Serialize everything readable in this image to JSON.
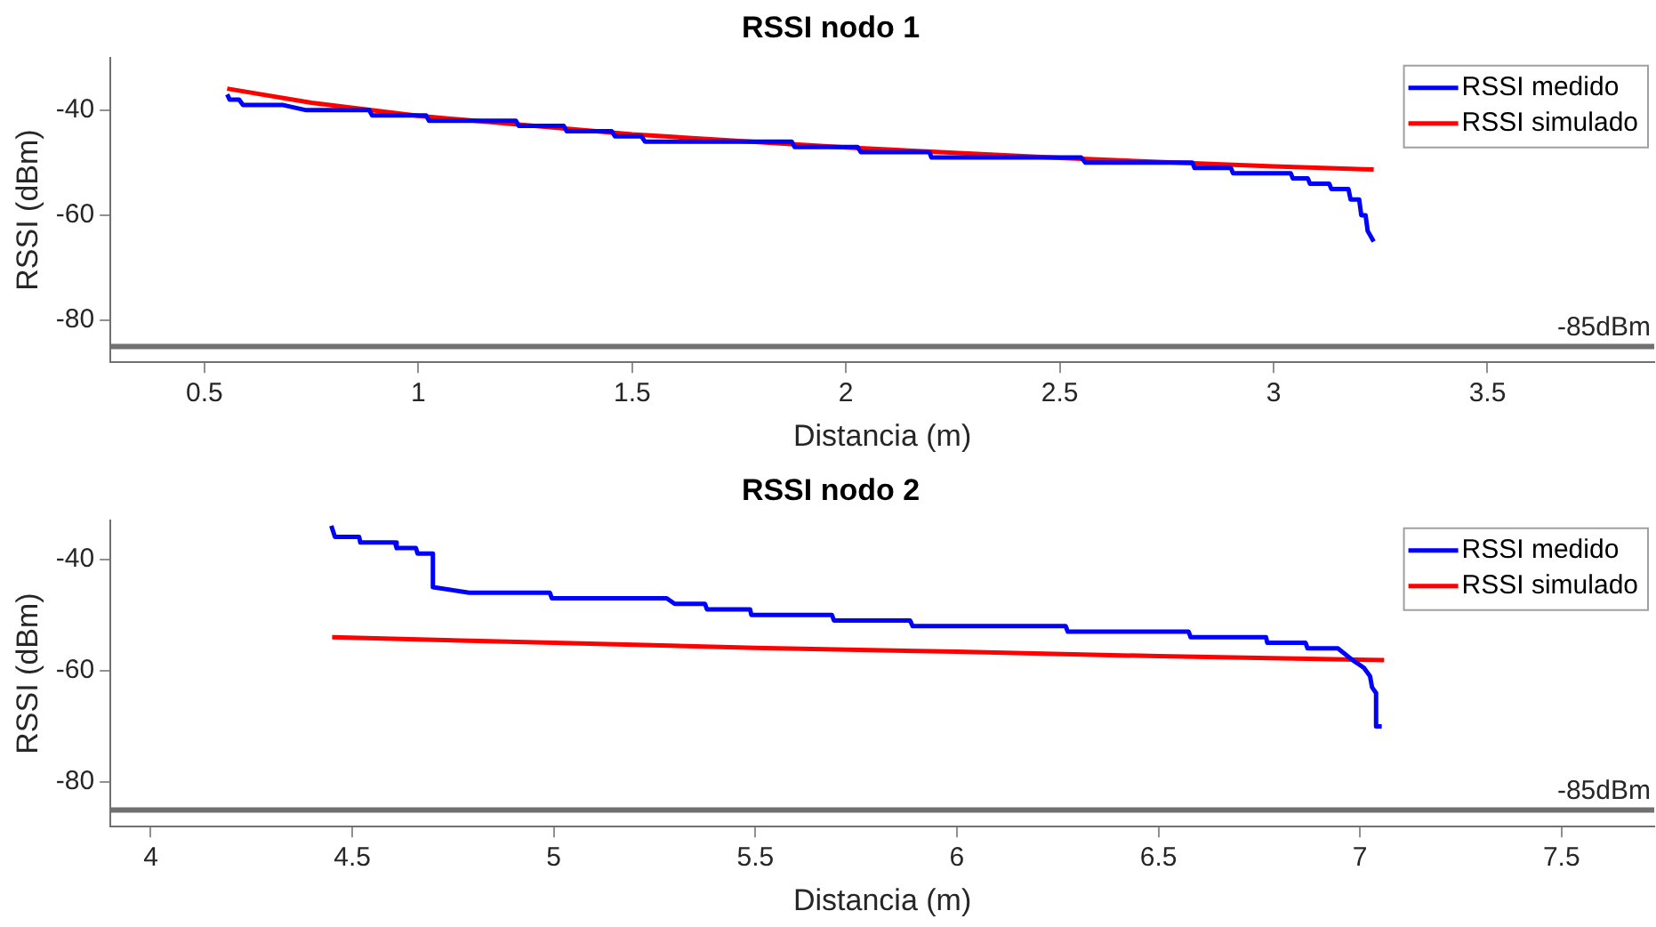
{
  "chart_data": [
    {
      "type": "line",
      "title": "RSSI nodo 1",
      "xlabel": "Distancia (m)",
      "ylabel": "RSSI (dBm)",
      "xlim": [
        0.28,
        3.89
      ],
      "xticks": [
        0.5,
        1,
        1.5,
        2,
        2.5,
        3,
        3.5
      ],
      "ylim": [
        -88,
        -30
      ],
      "yticks": [
        -40,
        -60,
        -80
      ],
      "grid": false,
      "legend": "top right",
      "line_style": "solid",
      "marker": "none",
      "ref_lines": [
        {
          "axis": "y",
          "value": -85,
          "label": "-85dBm",
          "color": "#707070"
        }
      ],
      "series": [
        {
          "name": "RSSI medido",
          "color": "#0000ff",
          "x": [
            0.553,
            0.559,
            0.581,
            0.59,
            0.682,
            0.738,
            0.885,
            0.892,
            1.018,
            1.025,
            1.228,
            1.235,
            1.34,
            1.347,
            1.452,
            1.46,
            1.522,
            1.53,
            1.873,
            1.88,
            2.027,
            2.035,
            2.195,
            2.2,
            2.55,
            2.56,
            2.81,
            2.815,
            2.9,
            2.905,
            3.04,
            3.045,
            3.08,
            3.085,
            3.13,
            3.135,
            3.175,
            3.18,
            3.2,
            3.205,
            3.215,
            3.22,
            3.234
          ],
          "values": [
            -37,
            -38,
            -38,
            -39,
            -39,
            -40,
            -40,
            -41,
            -41,
            -42,
            -42,
            -43,
            -43,
            -44,
            -44,
            -45,
            -45,
            -46,
            -46,
            -47,
            -47,
            -48,
            -48,
            -49,
            -49,
            -50,
            -50,
            -51,
            -51,
            -52,
            -52,
            -53,
            -53,
            -54,
            -54,
            -55,
            -55,
            -57,
            -57,
            -60,
            -60,
            -63,
            -65
          ]
        },
        {
          "name": "RSSI simulado",
          "color": "#ff0000",
          "x": [
            0.553,
            0.75,
            1,
            1.5,
            2,
            2.5,
            3,
            3.234
          ],
          "values": [
            -35.9,
            -38.6,
            -41.1,
            -44.6,
            -47.1,
            -49.1,
            -50.7,
            -51.3
          ]
        }
      ]
    },
    {
      "type": "line",
      "title": "RSSI nodo 2",
      "xlabel": "Distancia (m)",
      "ylabel": "RSSI (dBm)",
      "xlim": [
        3.9,
        7.73
      ],
      "xticks": [
        4,
        4.5,
        5,
        5.5,
        6,
        6.5,
        7,
        7.5
      ],
      "ylim": [
        -88,
        -33
      ],
      "yticks": [
        -40,
        -60,
        -80
      ],
      "grid": false,
      "legend": "top right",
      "line_style": "solid",
      "marker": "none",
      "ref_lines": [
        {
          "axis": "y",
          "value": -85,
          "label": "-85dBm",
          "color": "#707070"
        }
      ],
      "series": [
        {
          "name": "RSSI medido",
          "color": "#0000ff",
          "x": [
            4.448,
            4.457,
            4.517,
            4.52,
            4.606,
            4.61,
            4.658,
            4.662,
            4.7,
            4.7,
            4.79,
            4.99,
            4.995,
            5.28,
            5.3,
            5.375,
            5.38,
            5.487,
            5.49,
            5.69,
            5.695,
            5.884,
            5.89,
            6.27,
            6.275,
            6.575,
            6.58,
            6.767,
            6.77,
            6.865,
            6.87,
            6.945,
            6.98,
            7.01,
            7.025,
            7.03,
            7.04,
            7.04,
            7.054
          ],
          "values": [
            -34,
            -36,
            -36,
            -37,
            -37,
            -38,
            -38,
            -39,
            -39,
            -45,
            -46,
            -46,
            -47,
            -47,
            -48,
            -48,
            -49,
            -49,
            -50,
            -50,
            -51,
            -51,
            -52,
            -52,
            -53,
            -53,
            -54,
            -54,
            -55,
            -55,
            -56,
            -56,
            -58,
            -59.5,
            -61,
            -63,
            -64,
            -70,
            -70
          ]
        },
        {
          "name": "RSSI simulado",
          "color": "#ff0000",
          "x": [
            4.45,
            5,
            5.5,
            6,
            6.5,
            7.06
          ],
          "values": [
            -54,
            -55,
            -55.9,
            -56.6,
            -57.4,
            -58.1
          ]
        }
      ]
    }
  ]
}
